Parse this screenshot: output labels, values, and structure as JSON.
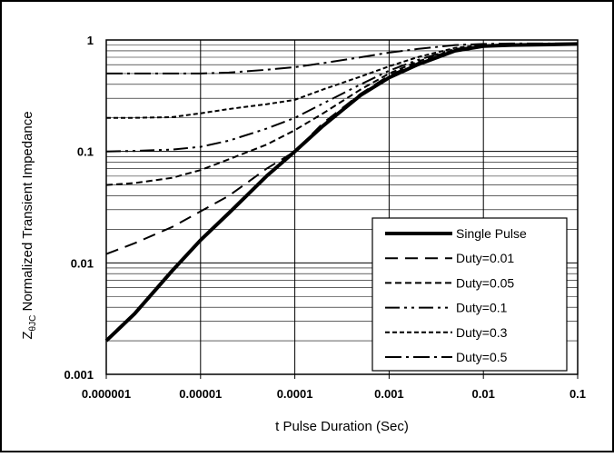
{
  "chart_data": {
    "type": "line",
    "xscale": "log",
    "yscale": "log",
    "xlabel": "t Pulse Duration (Sec)",
    "ylabel": {
      "prefix": "Z",
      "subscript": "θJC",
      "rest": " Normalized Transient Impedance"
    },
    "xlim": [
      1e-06,
      0.1
    ],
    "ylim": [
      0.001,
      1
    ],
    "xticks": [
      "0.000001",
      "0.00001",
      "0.0001",
      "0.001",
      "0.01",
      "0.1"
    ],
    "yticks": [
      "0.001",
      "0.01",
      "0.1",
      "1"
    ],
    "grid": true,
    "legend_position": "bottom-right",
    "series": [
      {
        "name": "Single Pulse",
        "dash": "solid",
        "width": 4,
        "x": [
          1e-06,
          2e-06,
          5e-06,
          1e-05,
          2e-05,
          5e-05,
          0.0001,
          0.0002,
          0.0005,
          0.001,
          0.002,
          0.005,
          0.01,
          0.02,
          0.05,
          0.1
        ],
        "y": [
          0.002,
          0.0035,
          0.0085,
          0.016,
          0.028,
          0.06,
          0.1,
          0.17,
          0.32,
          0.46,
          0.6,
          0.8,
          0.88,
          0.9,
          0.91,
          0.92
        ]
      },
      {
        "name": "Duty=0.01",
        "dash": "long",
        "width": 2,
        "x": [
          1e-06,
          2e-06,
          5e-06,
          1e-05,
          2e-05,
          5e-05,
          0.0001,
          0.0002,
          0.0005,
          0.001,
          0.002,
          0.005,
          0.01,
          0.02,
          0.05,
          0.1
        ],
        "y": [
          0.012,
          0.015,
          0.021,
          0.029,
          0.04,
          0.07,
          0.1,
          0.18,
          0.33,
          0.48,
          0.62,
          0.81,
          0.88,
          0.9,
          0.91,
          0.92
        ]
      },
      {
        "name": "Duty=0.05",
        "dash": "medium",
        "width": 2,
        "x": [
          1e-06,
          2e-06,
          5e-06,
          1e-05,
          2e-05,
          5e-05,
          0.0001,
          0.0002,
          0.0005,
          0.001,
          0.002,
          0.005,
          0.01,
          0.02,
          0.05,
          0.1
        ],
        "y": [
          0.05,
          0.052,
          0.058,
          0.068,
          0.085,
          0.115,
          0.155,
          0.22,
          0.36,
          0.5,
          0.64,
          0.82,
          0.89,
          0.9,
          0.91,
          0.92
        ]
      },
      {
        "name": "Duty=0.1",
        "dash": "dash-dot-dot",
        "width": 2,
        "x": [
          1e-06,
          2e-06,
          5e-06,
          1e-05,
          2e-05,
          5e-05,
          0.0001,
          0.0002,
          0.0005,
          0.001,
          0.002,
          0.005,
          0.01,
          0.02,
          0.05,
          0.1
        ],
        "y": [
          0.1,
          0.101,
          0.104,
          0.11,
          0.125,
          0.16,
          0.2,
          0.27,
          0.4,
          0.53,
          0.66,
          0.83,
          0.89,
          0.9,
          0.91,
          0.92
        ]
      },
      {
        "name": "Duty=0.3",
        "dash": "short",
        "width": 2,
        "x": [
          1e-06,
          2e-06,
          5e-06,
          1e-05,
          2e-05,
          5e-05,
          0.0001,
          0.0002,
          0.0005,
          0.001,
          0.002,
          0.005,
          0.01,
          0.02,
          0.05,
          0.1
        ],
        "y": [
          0.2,
          0.2,
          0.203,
          0.22,
          0.24,
          0.265,
          0.29,
          0.36,
          0.47,
          0.58,
          0.7,
          0.85,
          0.9,
          0.91,
          0.915,
          0.92
        ]
      },
      {
        "name": "Duty=0.5",
        "dash": "dash-dot",
        "width": 2,
        "x": [
          1e-06,
          2e-06,
          5e-06,
          1e-05,
          2e-05,
          5e-05,
          0.0001,
          0.0002,
          0.0005,
          0.001,
          0.002,
          0.005,
          0.01,
          0.02,
          0.05,
          0.1
        ],
        "y": [
          0.5,
          0.5,
          0.5,
          0.5,
          0.51,
          0.54,
          0.57,
          0.62,
          0.7,
          0.77,
          0.83,
          0.9,
          0.92,
          0.93,
          0.93,
          0.93
        ]
      }
    ]
  }
}
